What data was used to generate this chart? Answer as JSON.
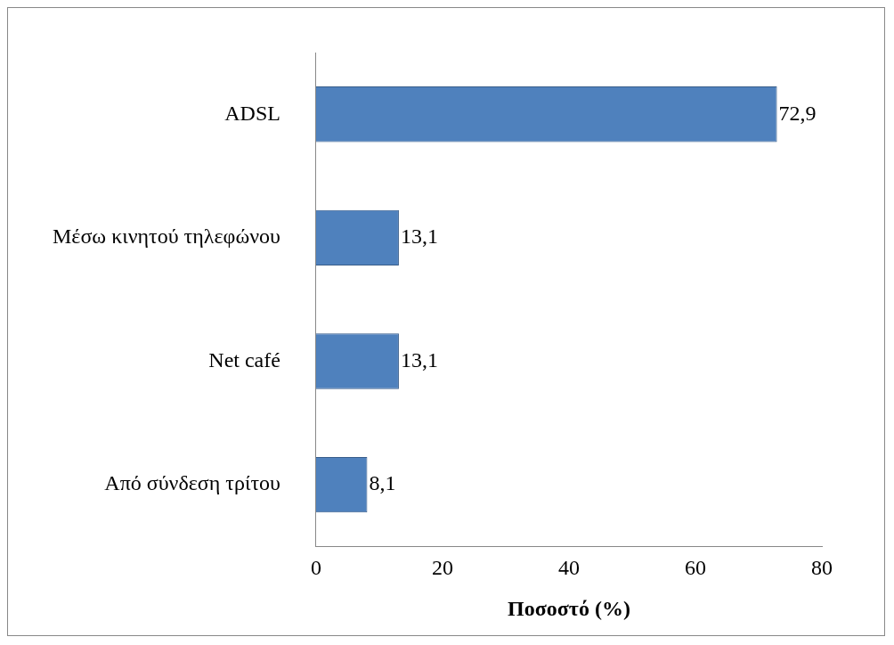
{
  "chart_data": {
    "type": "bar",
    "orientation": "horizontal",
    "xlabel": "Ποσοστό (%)",
    "categories": [
      "ADSL",
      "Μέσω κινητού τηλεφώνου",
      "Net café",
      "Από σύνδεση τρίτου"
    ],
    "values": [
      72.9,
      13.1,
      13.1,
      8.1
    ],
    "value_labels": [
      "72,9",
      "13,1",
      "13,1",
      "8,1"
    ],
    "color": "#4f81bd",
    "xlim": [
      0,
      80
    ],
    "xticks": [
      0,
      20,
      40,
      60,
      80
    ],
    "grid": false,
    "legend": false
  }
}
